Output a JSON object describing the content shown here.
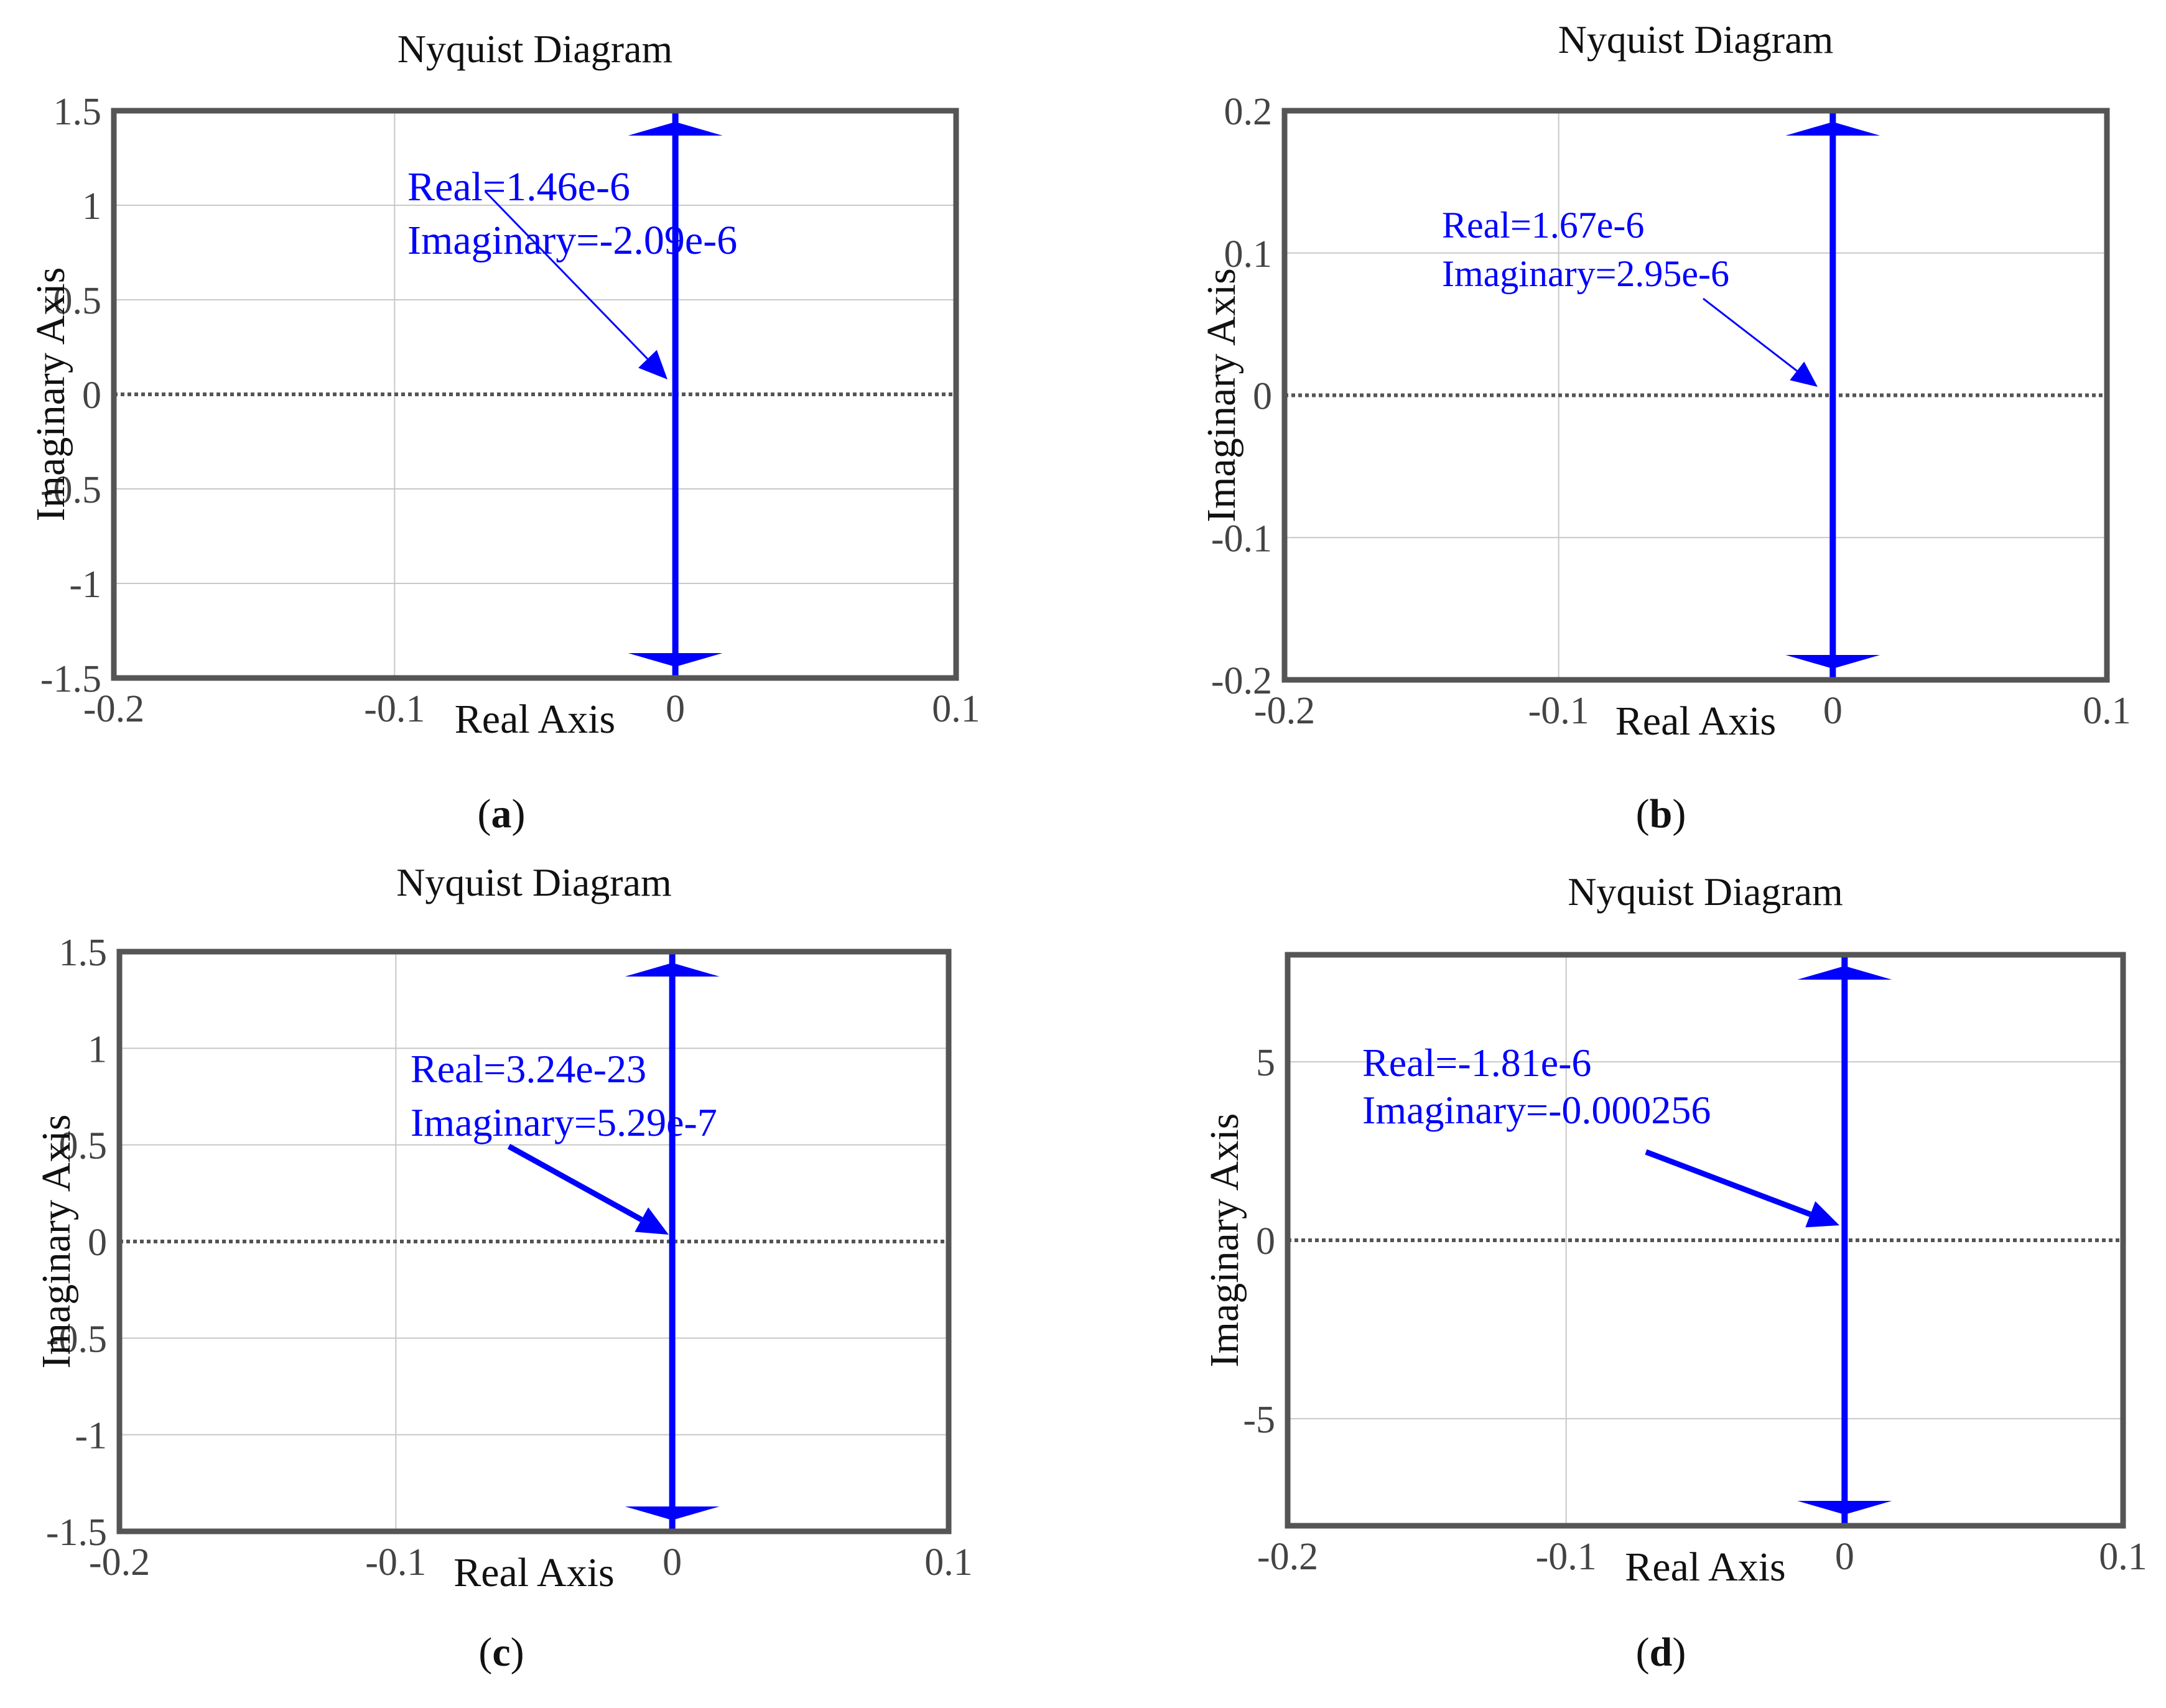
{
  "chart_data": [
    {
      "type": "line",
      "panel_label": "a",
      "title": "Nyquist Diagram",
      "xlabel": "Real Axis",
      "ylabel": "Imaginary Axis",
      "xlim": [
        -0.2,
        0.1
      ],
      "ylim": [
        -1.5,
        1.5
      ],
      "xticks": [
        -0.2,
        -0.1,
        0,
        0.1
      ],
      "xtick_labels": [
        "-0.2",
        "-0.1",
        "0",
        "0.1"
      ],
      "yticks": [
        -1.5,
        -1,
        -0.5,
        0,
        0.5,
        1,
        1.5
      ],
      "ytick_labels": [
        "-1.5",
        "-1",
        "-0.5",
        "0",
        "0.5",
        "1",
        "1.5"
      ],
      "grid": true,
      "series": [
        {
          "name": "Nyquist",
          "x": [
            0,
            0
          ],
          "y": [
            -1.5,
            1.5
          ],
          "color": "#0000ff"
        }
      ],
      "annotation": {
        "lines": [
          "Real=1.46e-6",
          "Imaginary=-2.09e-6"
        ],
        "point": [
          0,
          0
        ],
        "color": "#0000ff"
      }
    },
    {
      "type": "line",
      "panel_label": "b",
      "title": "Nyquist Diagram",
      "xlabel": "Real Axis",
      "ylabel": "Imaginary Axis",
      "xlim": [
        -0.2,
        0.1
      ],
      "ylim": [
        -0.2,
        0.2
      ],
      "xticks": [
        -0.2,
        -0.1,
        0,
        0.1
      ],
      "xtick_labels": [
        "-0.2",
        "-0.1",
        "0",
        "0.1"
      ],
      "yticks": [
        -0.2,
        -0.1,
        0,
        0.1,
        0.2
      ],
      "ytick_labels": [
        "-0.2",
        "-0.1",
        "0",
        "0.1",
        "0.2"
      ],
      "grid": true,
      "series": [
        {
          "name": "Nyquist",
          "x": [
            0,
            0
          ],
          "y": [
            -0.2,
            0.2
          ],
          "color": "#0000ff"
        }
      ],
      "annotation": {
        "lines": [
          "Real=1.67e-6",
          "Imaginary=2.95e-6"
        ],
        "point": [
          0,
          0
        ],
        "color": "#0000ff"
      }
    },
    {
      "type": "line",
      "panel_label": "c",
      "title": "Nyquist Diagram",
      "xlabel": "Real Axis",
      "ylabel": "Imaginary Axis",
      "xlim": [
        -0.2,
        0.1
      ],
      "ylim": [
        -1.5,
        1.5
      ],
      "xticks": [
        -0.2,
        -0.1,
        0,
        0.1
      ],
      "xtick_labels": [
        "-0.2",
        "-0.1",
        "0",
        "0.1"
      ],
      "yticks": [
        -1.5,
        -1,
        -0.5,
        0,
        0.5,
        1,
        1.5
      ],
      "ytick_labels": [
        "-1.5",
        "-1",
        "-0.5",
        "0",
        "0.5",
        "1",
        "1.5"
      ],
      "grid": true,
      "series": [
        {
          "name": "Nyquist",
          "x": [
            0,
            0
          ],
          "y": [
            -1.5,
            1.5
          ],
          "color": "#0000ff"
        }
      ],
      "annotation": {
        "lines": [
          "Real=3.24e-23",
          "Imaginary=5.29e-7"
        ],
        "point": [
          0,
          0
        ],
        "color": "#0000ff"
      }
    },
    {
      "type": "line",
      "panel_label": "d",
      "title": "Nyquist Diagram",
      "xlabel": "Real Axis",
      "ylabel": "Imaginary Axis",
      "xlim": [
        -0.2,
        0.1
      ],
      "ylim": [
        -8,
        8
      ],
      "xticks": [
        -0.2,
        -0.1,
        0,
        0.1
      ],
      "xtick_labels": [
        "-0.2",
        "-0.1",
        "0",
        "0.1"
      ],
      "yticks": [
        -5,
        0,
        5
      ],
      "ytick_labels": [
        "-5",
        "0",
        "5"
      ],
      "grid": true,
      "series": [
        {
          "name": "Nyquist",
          "x": [
            0,
            0
          ],
          "y": [
            -8,
            8
          ],
          "color": "#0000ff"
        }
      ],
      "annotation": {
        "lines": [
          "Real=-1.81e-6",
          "Imaginary=-0.000256"
        ],
        "point": [
          0,
          0
        ],
        "color": "#0000ff"
      }
    }
  ],
  "colors": {
    "curve": "#0000ff",
    "axes_frame": "#555555",
    "grid": "#c8c8c8",
    "zero_line": "#555555",
    "text": "#111111"
  }
}
